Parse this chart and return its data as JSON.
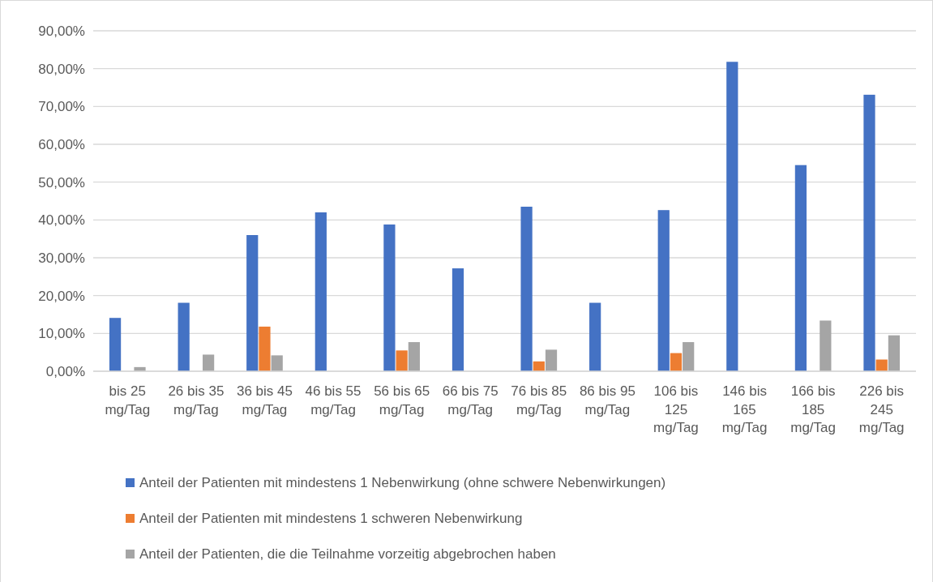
{
  "chart_data": {
    "type": "bar",
    "categories": [
      "bis 25 mg/Tag",
      "26 bis 35 mg/Tag",
      "36 bis 45 mg/Tag",
      "46 bis 55 mg/Tag",
      "56 bis 65 mg/Tag",
      "66 bis 75 mg/Tag",
      "76 bis 85 mg/Tag",
      "86 bis 95 mg/Tag",
      "106 bis 125 mg/Tag",
      "146 bis 165 mg/Tag",
      "166 bis 185 mg/Tag",
      "226 bis 245 mg/Tag"
    ],
    "series": [
      {
        "name": "Anteil der Patienten mit mindestens 1 Nebenwirkung (ohne schwere Nebenwirkungen)",
        "color": "#4472c4",
        "values": [
          14.1,
          18.1,
          36.0,
          42.0,
          38.8,
          27.2,
          43.5,
          18.1,
          42.6,
          81.8,
          54.5,
          73.1
        ]
      },
      {
        "name": "Anteil der Patienten mit mindestens 1 schweren Nebenwirkung",
        "color": "#ed7d31",
        "values": [
          0,
          0,
          11.8,
          0,
          5.5,
          0,
          2.6,
          0,
          4.8,
          0,
          0,
          3.1
        ]
      },
      {
        "name": "Anteil der Patienten, die die Teilnahme vorzeitig abgebrochen haben",
        "color": "#a5a5a5",
        "values": [
          1.1,
          4.4,
          4.2,
          0,
          7.7,
          0,
          5.7,
          0,
          7.7,
          0,
          13.4,
          9.5
        ]
      }
    ],
    "ylim": [
      0,
      90
    ],
    "yticks": [
      {
        "value": 0,
        "label": "0,00%"
      },
      {
        "value": 10,
        "label": "10,00%"
      },
      {
        "value": 20,
        "label": "20,00%"
      },
      {
        "value": 30,
        "label": "30,00%"
      },
      {
        "value": 40,
        "label": "40,00%"
      },
      {
        "value": 50,
        "label": "50,00%"
      },
      {
        "value": 60,
        "label": "60,00%"
      },
      {
        "value": 70,
        "label": "70,00%"
      },
      {
        "value": 80,
        "label": "80,00%"
      },
      {
        "value": 90,
        "label": "90,00%"
      }
    ],
    "grid": "y",
    "legend": "bottom"
  }
}
